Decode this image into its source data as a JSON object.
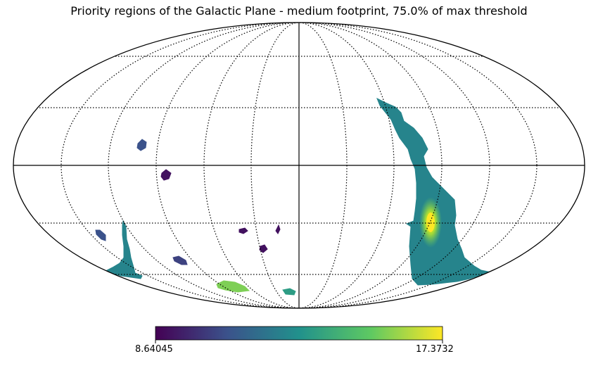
{
  "title": "Priority regions of the Galactic Plane - medium footprint, 75.0% of max threshold",
  "projection": "mollweide",
  "graticule": {
    "meridian_spacing_deg": 30,
    "parallel_spacing_deg": 30,
    "style": "dotted"
  },
  "colormap": {
    "name": "viridis",
    "min_label": "8.64045",
    "max_label": "17.3732",
    "stops": [
      "#440154",
      "#3b528b",
      "#21918c",
      "#5ec962",
      "#fde725"
    ]
  },
  "regions": [
    {
      "name": "main-plane-band",
      "level": 0.45
    },
    {
      "name": "band-bright-core",
      "level": 0.85
    },
    {
      "name": "blob-upper-left",
      "level": 0.25
    },
    {
      "name": "blob-mid-left",
      "level": 0.05
    },
    {
      "name": "blob-lower-left-a",
      "level": 0.25
    },
    {
      "name": "streak-lower-left",
      "level": 0.45
    },
    {
      "name": "blob-lower-left-b",
      "level": 0.2
    },
    {
      "name": "blob-center-a",
      "level": 0.05
    },
    {
      "name": "blob-center-b",
      "level": 0.05
    },
    {
      "name": "blob-center-c",
      "level": 0.05
    },
    {
      "name": "blob-bottom-bright",
      "level": 0.8
    },
    {
      "name": "blob-bottom-small",
      "level": 0.55
    }
  ]
}
